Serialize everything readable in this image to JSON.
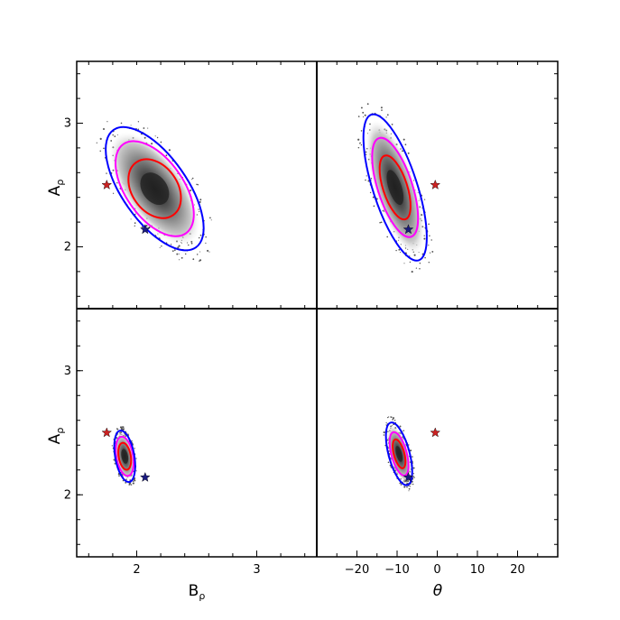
{
  "chart_data": {
    "type": "contour",
    "layout": "2x2 grid, shared axes, panels touching",
    "axes": {
      "y": {
        "label": "A",
        "label_sub": "ρ",
        "range": [
          1.5,
          3.5
        ],
        "ticks": [
          2,
          3
        ],
        "tick_labels": [
          "2",
          "3"
        ],
        "minor_ticks": [
          1.6,
          1.8,
          2.0,
          2.2,
          2.4,
          2.6,
          2.8,
          3.0,
          3.2,
          3.4
        ]
      },
      "x_left": {
        "label": "B",
        "label_sub": "ρ",
        "range": [
          1.5,
          3.5
        ],
        "ticks": [
          2,
          3
        ],
        "tick_labels": [
          "2",
          "3"
        ],
        "minor_ticks": [
          1.6,
          1.8,
          2.0,
          2.2,
          2.4,
          2.6,
          2.8,
          3.0,
          3.2,
          3.4
        ]
      },
      "x_right": {
        "label": "θ",
        "range": [
          -30,
          30
        ],
        "ticks": [
          -20,
          -10,
          0,
          10,
          20
        ],
        "tick_labels": [
          "−20",
          "−10",
          "0",
          "10",
          "20"
        ],
        "minor_ticks": [
          -25,
          -20,
          -15,
          -10,
          -5,
          0,
          5,
          10,
          15,
          20,
          25
        ]
      }
    },
    "contour_colors": {
      "inner": "#ff0000",
      "middle": "#ff00ff",
      "outer": "#0000ff"
    },
    "markers": {
      "red_star": "#cc2222",
      "blue_star": "#1a1a80"
    },
    "panels": [
      {
        "position": "top-left",
        "x_axis": "B_rho",
        "center": [
          2.15,
          2.47
        ],
        "contours": [
          {
            "level": "inner",
            "half_width": 0.19,
            "half_height": 0.26,
            "tilt_deg": 55
          },
          {
            "level": "middle",
            "half_width": 0.24,
            "half_height": 0.44,
            "tilt_deg": 55
          },
          {
            "level": "outer",
            "half_width": 0.27,
            "half_height": 0.58,
            "tilt_deg": 55
          }
        ],
        "stars": [
          {
            "color": "red",
            "x": 1.75,
            "y": 2.5
          },
          {
            "color": "blue",
            "x": 2.07,
            "y": 2.14
          }
        ]
      },
      {
        "position": "top-right",
        "x_axis": "theta",
        "center": [
          -10.5,
          2.48
        ],
        "contours": [
          {
            "level": "inner",
            "half_width": 3.0,
            "half_height": 0.27,
            "tilt_deg": 72
          },
          {
            "level": "middle",
            "half_width": 4.3,
            "half_height": 0.42,
            "tilt_deg": 72
          },
          {
            "level": "outer",
            "half_width": 5.5,
            "half_height": 0.62,
            "tilt_deg": 72
          }
        ],
        "stars": [
          {
            "color": "red",
            "x": -0.5,
            "y": 2.5
          },
          {
            "color": "blue",
            "x": -7.2,
            "y": 2.14
          }
        ]
      },
      {
        "position": "bottom-left",
        "x_axis": "B_rho",
        "center": [
          1.9,
          2.31
        ],
        "contours": [
          {
            "level": "inner",
            "half_width": 0.05,
            "half_height": 0.11,
            "tilt_deg": 80
          },
          {
            "level": "middle",
            "half_width": 0.07,
            "half_height": 0.16,
            "tilt_deg": 80
          },
          {
            "level": "outer",
            "half_width": 0.08,
            "half_height": 0.21,
            "tilt_deg": 80
          }
        ],
        "stars": [
          {
            "color": "red",
            "x": 1.75,
            "y": 2.5
          },
          {
            "color": "blue",
            "x": 2.07,
            "y": 2.14
          }
        ]
      },
      {
        "position": "bottom-right",
        "x_axis": "theta",
        "center": [
          -9.5,
          2.33
        ],
        "contours": [
          {
            "level": "inner",
            "half_width": 1.3,
            "half_height": 0.12,
            "tilt_deg": 75
          },
          {
            "level": "middle",
            "half_width": 1.9,
            "half_height": 0.18,
            "tilt_deg": 75
          },
          {
            "level": "outer",
            "half_width": 2.6,
            "half_height": 0.26,
            "tilt_deg": 75
          }
        ],
        "stars": [
          {
            "color": "red",
            "x": -0.5,
            "y": 2.5
          },
          {
            "color": "blue",
            "x": -7.2,
            "y": 2.14
          }
        ]
      }
    ]
  }
}
